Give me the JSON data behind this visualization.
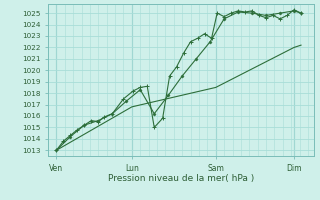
{
  "xlabel": "Pression niveau de la mer( hPa )",
  "bg_color": "#cff0ea",
  "grid_color": "#a8ddd8",
  "line_color": "#2d6e3a",
  "vline_color": "#7abdb8",
  "ylim": [
    1012.5,
    1025.8
  ],
  "xlim": [
    0,
    9.5
  ],
  "yticks": [
    1013,
    1014,
    1015,
    1016,
    1017,
    1018,
    1019,
    1020,
    1021,
    1022,
    1023,
    1024,
    1025
  ],
  "xtick_labels": [
    "Ven",
    "Lun",
    "Sam",
    "Dim"
  ],
  "xtick_positions": [
    0.3,
    3.0,
    6.0,
    8.8
  ],
  "vlines_x": [
    0.3,
    3.0,
    6.0,
    8.8
  ],
  "series1_x": [
    0.3,
    0.55,
    0.8,
    1.05,
    1.3,
    1.55,
    1.8,
    2.0,
    2.3,
    2.7,
    3.05,
    3.3,
    3.55,
    3.8,
    4.1,
    4.35,
    4.6,
    4.85,
    5.1,
    5.35,
    5.6,
    5.85,
    6.05,
    6.3,
    6.55,
    6.8,
    7.05,
    7.3,
    7.55,
    7.8,
    8.05,
    8.3,
    8.55,
    8.8,
    9.05
  ],
  "series1_y": [
    1013.0,
    1013.8,
    1014.3,
    1014.8,
    1015.2,
    1015.6,
    1015.5,
    1015.9,
    1016.2,
    1017.5,
    1018.2,
    1018.5,
    1018.6,
    1015.0,
    1015.8,
    1019.5,
    1020.3,
    1021.5,
    1022.5,
    1022.8,
    1023.2,
    1022.8,
    1025.0,
    1024.7,
    1025.0,
    1025.2,
    1025.1,
    1025.2,
    1024.8,
    1024.6,
    1024.8,
    1024.5,
    1024.8,
    1025.3,
    1025.0
  ],
  "series2_x": [
    0.3,
    0.8,
    1.3,
    1.8,
    2.3,
    2.8,
    3.3,
    3.8,
    4.3,
    4.8,
    5.3,
    5.8,
    6.3,
    6.8,
    7.3,
    7.8,
    8.3,
    8.8,
    9.05
  ],
  "series2_y": [
    1013.0,
    1014.2,
    1015.2,
    1015.6,
    1016.2,
    1017.3,
    1018.3,
    1016.2,
    1017.8,
    1019.5,
    1021.0,
    1022.5,
    1024.5,
    1025.1,
    1025.0,
    1024.8,
    1025.0,
    1025.2,
    1025.0
  ],
  "series3_x": [
    0.3,
    3.0,
    6.0,
    8.8,
    9.05
  ],
  "series3_y": [
    1013.0,
    1016.8,
    1018.5,
    1022.0,
    1022.2
  ]
}
